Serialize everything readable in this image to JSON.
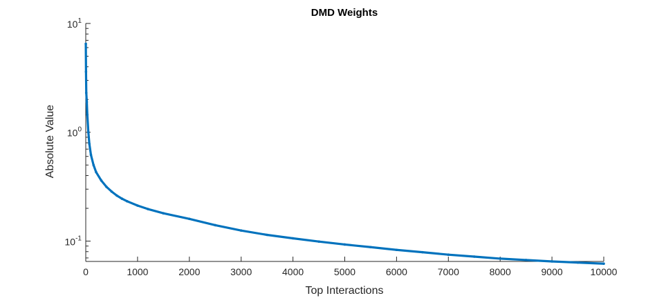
{
  "chart_data": {
    "type": "line",
    "title": "DMD Weights",
    "xlabel": "Top Interactions",
    "ylabel": "Absolute Value",
    "xlim": [
      0,
      10000
    ],
    "ylim": [
      0.065,
      10
    ],
    "yscale": "log",
    "grid": false,
    "color": "#0072BD",
    "xticks": [
      0,
      1000,
      2000,
      3000,
      4000,
      5000,
      6000,
      7000,
      8000,
      9000,
      10000
    ],
    "xtick_labels": [
      "0",
      "1000",
      "2000",
      "3000",
      "4000",
      "5000",
      "6000",
      "7000",
      "8000",
      "9000",
      "10000"
    ],
    "yticks": [
      {
        "value": 10,
        "base": "10",
        "exp": "1"
      },
      {
        "value": 1,
        "base": "10",
        "exp": "0"
      },
      {
        "value": 0.1,
        "base": "10",
        "exp": "-1"
      }
    ],
    "series": [
      {
        "x": [
          1,
          5,
          10,
          20,
          30,
          50,
          70,
          100,
          150,
          200,
          300,
          400,
          500,
          600,
          700,
          800,
          1000,
          1200,
          1500,
          2000,
          2500,
          3000,
          3500,
          4000,
          4500,
          5000,
          5500,
          6000,
          6500,
          7000,
          7500,
          8000,
          8500,
          9000,
          9500,
          10000
        ],
        "y": [
          6.5,
          3.6,
          2.3,
          1.9,
          1.45,
          1.0,
          0.78,
          0.62,
          0.5,
          0.43,
          0.36,
          0.315,
          0.285,
          0.262,
          0.245,
          0.232,
          0.212,
          0.197,
          0.18,
          0.16,
          0.14,
          0.125,
          0.114,
          0.106,
          0.099,
          0.093,
          0.088,
          0.083,
          0.079,
          0.075,
          0.072,
          0.069,
          0.067,
          0.065,
          0.0635,
          0.062
        ]
      }
    ]
  }
}
